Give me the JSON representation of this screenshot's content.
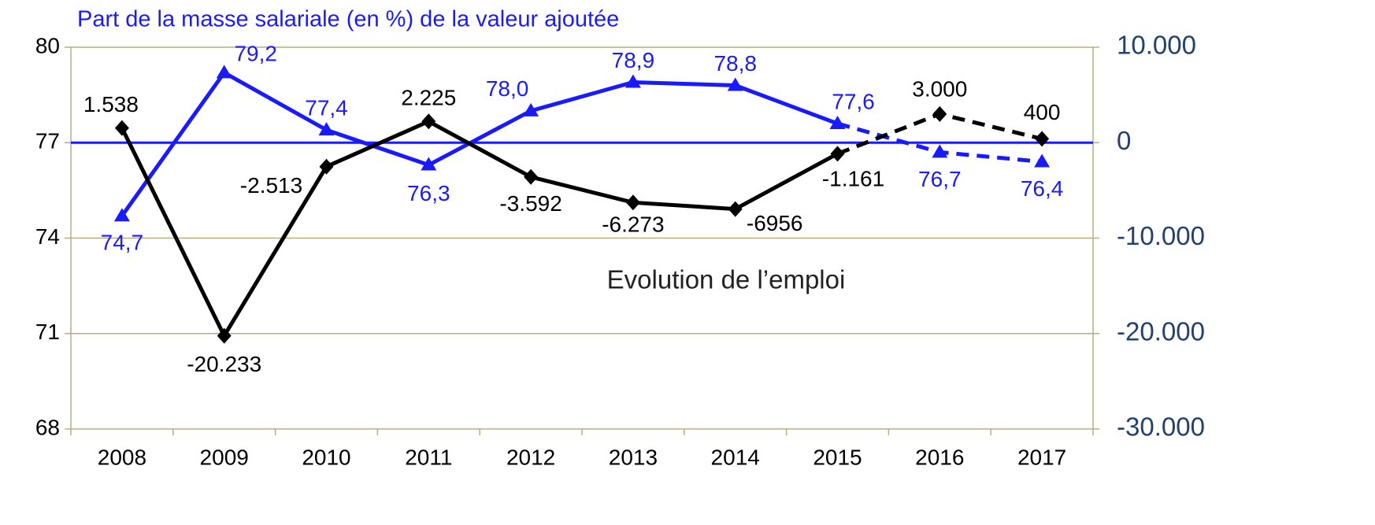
{
  "chart_data": {
    "type": "line",
    "categories": [
      "2008",
      "2009",
      "2010",
      "2011",
      "2012",
      "2013",
      "2014",
      "2015",
      "2016",
      "2017"
    ],
    "series": [
      {
        "name": "Part de la masse salariale (en %) de la valeur ajoutée",
        "color": "#1a1aff",
        "axis": "y",
        "values": [
          74.7,
          79.2,
          77.4,
          76.3,
          78.0,
          78.9,
          78.8,
          77.6,
          76.7,
          76.4
        ],
        "value_labels": [
          "74,7",
          "79,2",
          "77,4",
          "76,3",
          "78,0",
          "78,9",
          "78,8",
          "77,6",
          "76,7",
          "76,4"
        ]
      },
      {
        "name": "Evolution de l’emploi",
        "color": "#000000",
        "axis": "y2",
        "values": [
          1538,
          -20233,
          -2513,
          2225,
          -3592,
          -6273,
          -6956,
          -1161,
          3000,
          400
        ],
        "value_labels": [
          "1.538",
          "-20.233",
          "-2.513",
          "2.225",
          "-3.592",
          "-6.273",
          "-6956",
          "-1.161",
          "3.000",
          "400"
        ]
      }
    ],
    "dashed_from": "2015",
    "ylim": [
      68,
      80
    ],
    "yticks": [
      68,
      71,
      74,
      77,
      80
    ],
    "y2lim": [
      -30000,
      10000
    ],
    "y2ticks": [
      {
        "value": -30000,
        "label": "-30.000"
      },
      {
        "value": -20000,
        "label": "-20.000"
      },
      {
        "value": -10000,
        "label": "-10.000"
      },
      0,
      {
        "value": 10000,
        "label": "10.000"
      }
    ],
    "grid": true,
    "grid_color": "#b8ad80",
    "zero_line_color": "#1a1aff",
    "y2_color": "#23406e"
  }
}
